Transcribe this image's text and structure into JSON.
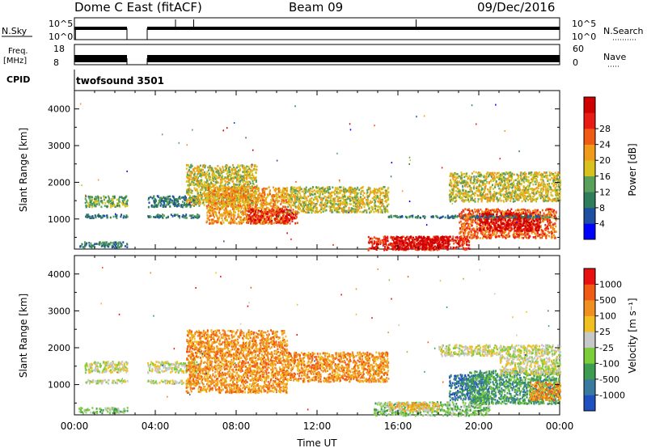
{
  "header": {
    "station": "Dome C East (fitACF)",
    "beam": "Beam 09",
    "date": "09/Dec/2016"
  },
  "strip_labels": {
    "nsky": "N.Sky",
    "nsky_ticks": [
      "10^5",
      "10^0"
    ],
    "nsearch": "N.Search",
    "nsearch_ticks": [
      "10^5",
      "10^0"
    ],
    "freq": "Freq.",
    "freq_unit": "[MHz]",
    "freq_ticks": [
      "18",
      "8"
    ],
    "nave": "Nave",
    "nave_ticks": [
      "60",
      "0"
    ],
    "cpid": "CPID",
    "cpid_value": "twofsound 3501"
  },
  "chart_data": [
    {
      "type": "heatmap",
      "name": "power",
      "ylabel": "Slant Range [km]",
      "xlabel": "",
      "yticks": [
        "1000",
        "2000",
        "3000",
        "4000"
      ],
      "ylim": [
        180,
        4500
      ],
      "xlim": [
        0,
        24
      ],
      "colorbar": {
        "label": "Power [dB]",
        "ticks": [
          "4",
          "8",
          "12",
          "16",
          "20",
          "24",
          "28"
        ],
        "colors": [
          "#0000ff",
          "#1f4fa0",
          "#2e7d5b",
          "#5aa05a",
          "#d9c21e",
          "#f09a1a",
          "#f05a14",
          "#e81c14",
          "#d00000"
        ]
      },
      "coverage_hours": [
        [
          0,
          2.6
        ],
        [
          3.6,
          24
        ]
      ],
      "regions": [
        {
          "t0": 0.5,
          "t1": 2.6,
          "r0": 1350,
          "r1": 1650,
          "level": 3
        },
        {
          "t0": 0.5,
          "t1": 2.6,
          "r0": 1050,
          "r1": 1150,
          "level": 2
        },
        {
          "t0": 0.2,
          "t1": 2.6,
          "r0": 250,
          "r1": 400,
          "level": 2
        },
        {
          "t0": 3.6,
          "t1": 6.2,
          "r0": 1350,
          "r1": 1650,
          "level": 2
        },
        {
          "t0": 3.6,
          "t1": 6.2,
          "r0": 1050,
          "r1": 1150,
          "level": 2
        },
        {
          "t0": 5.5,
          "t1": 9.0,
          "r0": 1400,
          "r1": 2500,
          "level": 4
        },
        {
          "t0": 6.5,
          "t1": 10.5,
          "r0": 900,
          "r1": 1900,
          "level": 5
        },
        {
          "t0": 8.5,
          "t1": 11.0,
          "r0": 900,
          "r1": 1300,
          "level": 7
        },
        {
          "t0": 10.5,
          "t1": 15.5,
          "r0": 1200,
          "r1": 1900,
          "level": 4
        },
        {
          "t0": 14.5,
          "t1": 19.5,
          "r0": 180,
          "r1": 550,
          "level": 7
        },
        {
          "t0": 15.8,
          "t1": 18.5,
          "r0": 200,
          "r1": 550,
          "level": 8
        },
        {
          "t0": 19.0,
          "t1": 23.8,
          "r0": 500,
          "r1": 1300,
          "level": 6
        },
        {
          "t0": 20.0,
          "t1": 23.0,
          "r0": 700,
          "r1": 1200,
          "level": 8
        },
        {
          "t0": 18.5,
          "t1": 24.0,
          "r0": 1500,
          "r1": 2300,
          "level": 4
        },
        {
          "t0": 15.5,
          "t1": 24.0,
          "r0": 1050,
          "r1": 1120,
          "level": 2
        }
      ]
    },
    {
      "type": "heatmap",
      "name": "velocity",
      "ylabel": "Slant Range [km]",
      "xlabel": "Time UT",
      "xticks": [
        "00:00",
        "04:00",
        "08:00",
        "12:00",
        "16:00",
        "20:00",
        "00:00"
      ],
      "yticks": [
        "1000",
        "2000",
        "3000",
        "4000"
      ],
      "ylim": [
        180,
        4500
      ],
      "xlim": [
        0,
        24
      ],
      "colorbar": {
        "label": "Velocity [m s⁻¹]",
        "ticks": [
          "1000",
          "500",
          "100",
          "25",
          "-25",
          "-100",
          "-500",
          "-1000"
        ],
        "colors": [
          "#2050c0",
          "#3a7aa0",
          "#3c9c50",
          "#7ccd3a",
          "#c8c8c8",
          "#f0c020",
          "#f09020",
          "#f05a14",
          "#e81010"
        ]
      },
      "coverage_hours": [
        [
          0,
          2.6
        ],
        [
          3.6,
          24
        ]
      ],
      "regions": [
        {
          "t0": 0.5,
          "t1": 2.6,
          "r0": 1350,
          "r1": 1650,
          "level": 4
        },
        {
          "t0": 0.5,
          "t1": 2.6,
          "r0": 1050,
          "r1": 1150,
          "level": 4
        },
        {
          "t0": 0.2,
          "t1": 2.6,
          "r0": 250,
          "r1": 400,
          "level": 3
        },
        {
          "t0": 3.6,
          "t1": 6.2,
          "r0": 1350,
          "r1": 1650,
          "level": 4
        },
        {
          "t0": 3.6,
          "t1": 6.2,
          "r0": 1050,
          "r1": 1150,
          "level": 4
        },
        {
          "t0": 5.5,
          "t1": 10.5,
          "r0": 800,
          "r1": 2500,
          "level": 6
        },
        {
          "t0": 10.5,
          "t1": 15.5,
          "r0": 1100,
          "r1": 1900,
          "level": 6
        },
        {
          "t0": 14.8,
          "t1": 20.5,
          "r0": 180,
          "r1": 550,
          "level": 3
        },
        {
          "t0": 15.5,
          "t1": 18.0,
          "r0": 300,
          "r1": 550,
          "level": 5
        },
        {
          "t0": 18.5,
          "t1": 20.5,
          "r0": 600,
          "r1": 1300,
          "level": 1
        },
        {
          "t0": 19.5,
          "t1": 24.0,
          "r0": 500,
          "r1": 1400,
          "level": 2
        },
        {
          "t0": 21.0,
          "t1": 24.0,
          "r0": 1300,
          "r1": 1800,
          "level": 4
        },
        {
          "t0": 18.0,
          "t1": 24.0,
          "r0": 1800,
          "r1": 2100,
          "level": 4
        },
        {
          "t0": 22.5,
          "t1": 24.0,
          "r0": 600,
          "r1": 1100,
          "level": 6
        }
      ]
    }
  ]
}
